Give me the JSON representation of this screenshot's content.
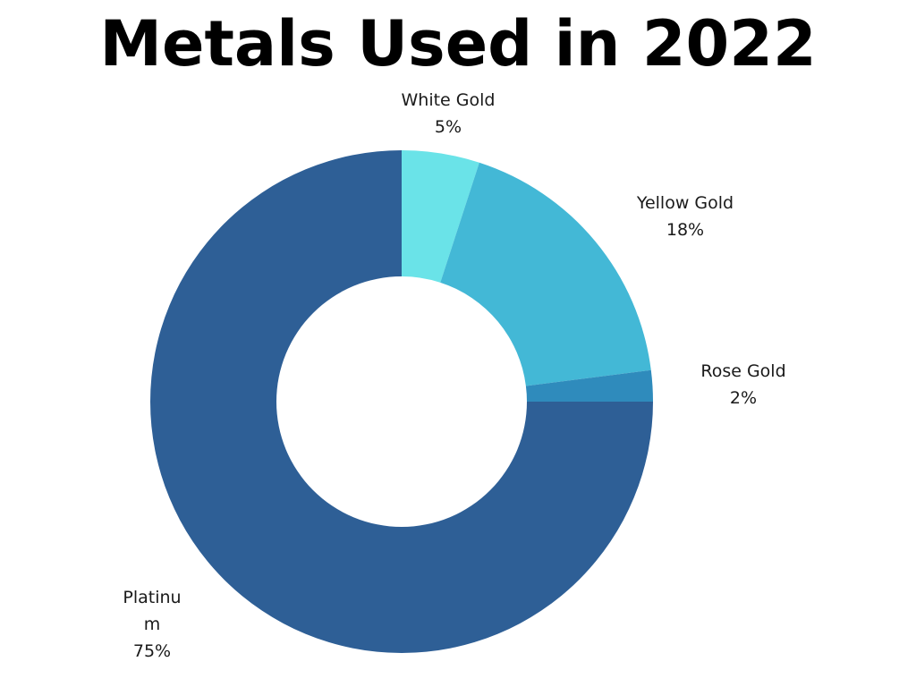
{
  "chart_data": {
    "type": "pie",
    "title": "Metals Used in 2022",
    "slices": [
      {
        "name": "White Gold",
        "value": 5,
        "label_lines": [
          "White Gold",
          "5%"
        ],
        "color": "#6AE3E8"
      },
      {
        "name": "Yellow Gold",
        "value": 18,
        "label_lines": [
          "Yellow Gold",
          "18%"
        ],
        "color": "#43B8D6"
      },
      {
        "name": "Rose Gold",
        "value": 2,
        "label_lines": [
          "Rose Gold",
          "2%"
        ],
        "color": "#2F8BBC"
      },
      {
        "name": "Platinum",
        "value": 75,
        "label_lines": [
          "Platinu",
          "m",
          "75%"
        ],
        "color": "#2E5F96"
      }
    ],
    "legend": "none",
    "grid": false
  }
}
